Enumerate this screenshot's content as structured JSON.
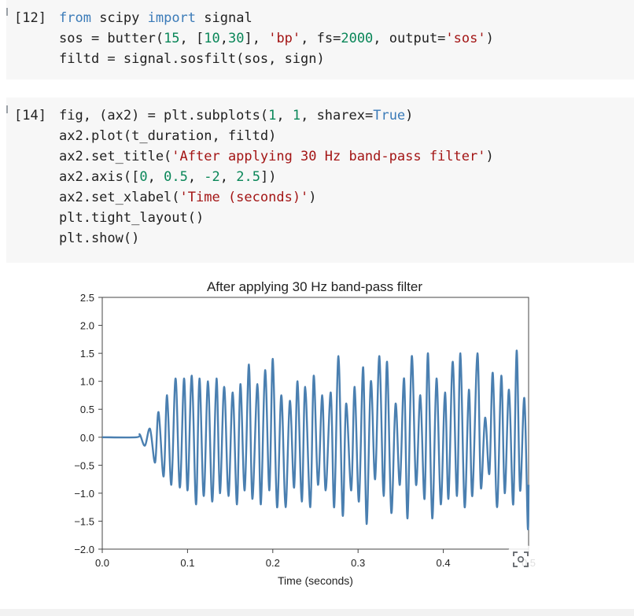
{
  "cells": [
    {
      "prompt": "[12]",
      "lines": [
        [
          {
            "t": "from",
            "c": "kw"
          },
          {
            "t": " scipy "
          },
          {
            "t": "import",
            "c": "kw"
          },
          {
            "t": " signal"
          }
        ],
        [
          {
            "t": "sos = butter("
          },
          {
            "t": "15",
            "c": "num"
          },
          {
            "t": ", ["
          },
          {
            "t": "10",
            "c": "num"
          },
          {
            "t": ","
          },
          {
            "t": "30",
            "c": "num"
          },
          {
            "t": "], "
          },
          {
            "t": "'bp'",
            "c": "str"
          },
          {
            "t": ", fs="
          },
          {
            "t": "2000",
            "c": "num"
          },
          {
            "t": ", output="
          },
          {
            "t": "'sos'",
            "c": "str"
          },
          {
            "t": ")"
          }
        ],
        [
          {
            "t": "filtd = signal.sosfilt(sos, sign)"
          }
        ]
      ]
    },
    {
      "prompt": "[14]",
      "lines": [
        [
          {
            "t": "fig, (ax2) = plt.subplots("
          },
          {
            "t": "1",
            "c": "num"
          },
          {
            "t": ", "
          },
          {
            "t": "1",
            "c": "num"
          },
          {
            "t": ", sharex="
          },
          {
            "t": "True",
            "c": "kw"
          },
          {
            "t": ")"
          }
        ],
        [
          {
            "t": "ax2.plot(t_duration, filtd)"
          }
        ],
        [
          {
            "t": "ax2.set_title("
          },
          {
            "t": "'After applying 30 Hz band-pass filter'",
            "c": "str"
          },
          {
            "t": ")"
          }
        ],
        [
          {
            "t": "ax2.axis(["
          },
          {
            "t": "0",
            "c": "num"
          },
          {
            "t": ", "
          },
          {
            "t": "0.5",
            "c": "num"
          },
          {
            "t": ", "
          },
          {
            "t": "-2",
            "c": "num"
          },
          {
            "t": ", "
          },
          {
            "t": "2.5",
            "c": "num"
          },
          {
            "t": "])"
          }
        ],
        [
          {
            "t": "ax2.set_xlabel("
          },
          {
            "t": "'Time (seconds)'",
            "c": "str"
          },
          {
            "t": ")"
          }
        ],
        [
          {
            "t": "plt.tight_layout()"
          }
        ],
        [
          {
            "t": "plt.show()"
          }
        ]
      ]
    }
  ],
  "colors": {
    "line": "#4a7fb0",
    "keyword": "#3b7bb8",
    "string": "#a31515",
    "number": "#098658"
  },
  "icons": {
    "plot_action": "camera-focus-icon"
  },
  "chart_data": {
    "type": "line",
    "title": "After applying 30 Hz band-pass filter",
    "xlabel": "Time (seconds)",
    "ylabel": "",
    "xlim": [
      0,
      0.5
    ],
    "ylim": [
      -2,
      2.5
    ],
    "xticks": [
      0.0,
      0.1,
      0.2,
      0.3,
      0.4,
      0.5
    ],
    "xtick_labels": [
      "0.0",
      "0.1",
      "0.2",
      "0.3",
      "0.4",
      "0.5"
    ],
    "yticks": [
      -2.0,
      -1.5,
      -1.0,
      -0.5,
      0.0,
      0.5,
      1.0,
      1.5,
      2.0,
      2.5
    ],
    "ytick_labels": [
      "−2.0",
      "−1.5",
      "−1.0",
      "−0.5",
      "0.0",
      "0.5",
      "1.0",
      "1.5",
      "2.0",
      "2.5"
    ],
    "grid": false,
    "series": [
      {
        "x": [
          0,
          0.04,
          0.044,
          0.05,
          0.056,
          0.062,
          0.066,
          0.072,
          0.076,
          0.081,
          0.086,
          0.091,
          0.096,
          0.1,
          0.105,
          0.11,
          0.114,
          0.119,
          0.124,
          0.129,
          0.134,
          0.138,
          0.143,
          0.148,
          0.153,
          0.158,
          0.162,
          0.167,
          0.172,
          0.176,
          0.182,
          0.186,
          0.191,
          0.196,
          0.2,
          0.205,
          0.21,
          0.215,
          0.22,
          0.225,
          0.229,
          0.234,
          0.238,
          0.244,
          0.248,
          0.253,
          0.258,
          0.262,
          0.268,
          0.272,
          0.277,
          0.282,
          0.286,
          0.292,
          0.296,
          0.301,
          0.306,
          0.31,
          0.315,
          0.32,
          0.325,
          0.33,
          0.334,
          0.339,
          0.344,
          0.349,
          0.354,
          0.358,
          0.363,
          0.368,
          0.373,
          0.378,
          0.382,
          0.387,
          0.392,
          0.397,
          0.402,
          0.406,
          0.411,
          0.416,
          0.42,
          0.425,
          0.43,
          0.434,
          0.44,
          0.444,
          0.449,
          0.454,
          0.458,
          0.463,
          0.468,
          0.472,
          0.477,
          0.482,
          0.486,
          0.49,
          0.495,
          0.499,
          0.5
        ],
        "y": [
          0,
          0,
          0.05,
          -0.15,
          0.15,
          -0.45,
          0.45,
          -0.7,
          0.75,
          -0.85,
          1.05,
          -0.9,
          1.05,
          -0.95,
          1.1,
          -1.2,
          1.05,
          -1.05,
          1.0,
          -1.15,
          1.05,
          -1.0,
          0.9,
          -1.05,
          0.8,
          -1.2,
          0.95,
          -0.95,
          1.3,
          -1.1,
          0.95,
          -1.2,
          1.2,
          -0.95,
          1.4,
          -1.25,
          0.75,
          -1.25,
          0.65,
          -0.9,
          1.0,
          -1.15,
          0.9,
          -1.25,
          1.1,
          -0.85,
          0.75,
          -0.95,
          0.8,
          -1.25,
          1.45,
          -1.4,
          0.6,
          -0.95,
          0.9,
          -1.15,
          1.25,
          -1.55,
          1.0,
          -0.75,
          1.45,
          -1.05,
          1.35,
          -1.35,
          0.6,
          -0.85,
          1.05,
          -1.45,
          1.45,
          -0.85,
          0.75,
          -1.1,
          1.5,
          -1.45,
          1.05,
          -1.2,
          0.8,
          -1.1,
          1.35,
          -1.05,
          1.5,
          -1.25,
          0.85,
          -1.05,
          1.5,
          -0.9,
          0.35,
          -0.65,
          1.15,
          -1.25,
          1.1,
          -1.0,
          0.85,
          -1.2,
          1.55,
          -0.95,
          0.7,
          -1.6,
          -0.85
        ]
      }
    ]
  }
}
